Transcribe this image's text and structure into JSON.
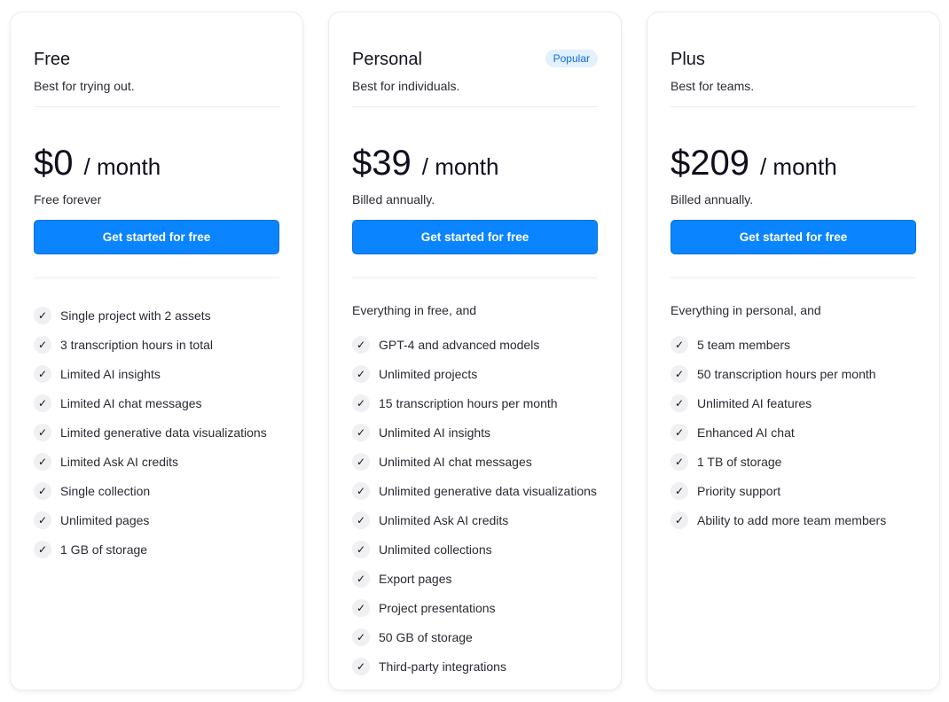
{
  "plans": [
    {
      "name": "Free",
      "tagline": "Best for trying out.",
      "price": "$0",
      "period": "/ month",
      "note": "Free forever",
      "cta": "Get started for free",
      "features": [
        "Single project with 2 assets",
        "3 transcription hours in total",
        "Limited AI insights",
        "Limited AI chat messages",
        "Limited generative data visualizations",
        "Limited Ask AI credits",
        "Single collection",
        "Unlimited pages",
        "1 GB of storage"
      ]
    },
    {
      "name": "Personal",
      "badge": "Popular",
      "tagline": "Best for individuals.",
      "price": "$39",
      "period": "/ month",
      "note": "Billed annually.",
      "cta": "Get started for free",
      "intro": "Everything in free, and",
      "features": [
        "GPT-4 and advanced models",
        "Unlimited projects",
        "15 transcription hours per month",
        "Unlimited AI insights",
        "Unlimited AI chat messages",
        "Unlimited generative data visualizations",
        "Unlimited Ask AI credits",
        "Unlimited collections",
        "Export pages",
        "Project presentations",
        "50 GB of storage",
        "Third-party integrations"
      ]
    },
    {
      "name": "Plus",
      "tagline": "Best for teams.",
      "price": "$209",
      "period": "/ month",
      "note": "Billed annually.",
      "cta": "Get started for free",
      "intro": "Everything in personal, and",
      "features": [
        "5 team members",
        "50 transcription hours per month",
        "Unlimited AI features",
        "Enhanced AI chat",
        "1 TB of storage",
        "Priority support",
        "Ability to add more team members"
      ]
    }
  ],
  "icons": {
    "feature": "check-icon"
  },
  "colors": {
    "accent": "#0a84ff",
    "badge_bg": "#e3f0fd",
    "badge_text": "#0b6fd8"
  }
}
